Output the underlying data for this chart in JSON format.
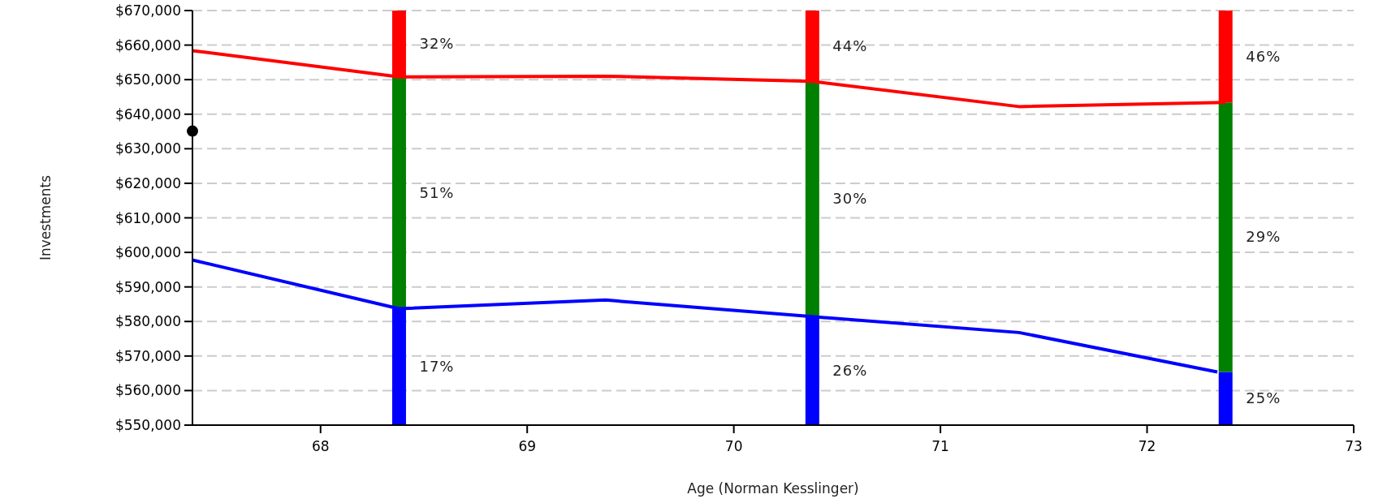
{
  "chart_data": {
    "type": "bar",
    "xlabel": "Age (Norman Kesslinger)",
    "ylabel": "Investments",
    "x": [
      68.38,
      70.38,
      72.38
    ],
    "series": [
      {
        "color": "#0000ff",
        "base": [
          550000,
          550000,
          550000
        ],
        "values": [
          33700,
          31400,
          15400
        ]
      },
      {
        "color": "#008000",
        "base": [
          583700,
          581400,
          565400
        ],
        "values": [
          67100,
          68100,
          78000
        ]
      },
      {
        "color": "#ff0000",
        "base": [
          650800,
          649500,
          643400
        ],
        "values": [
          19200,
          20500,
          26600
        ]
      },
      {
        "type": "line",
        "color": "#ff0000",
        "x": [
          67.38,
          68.38,
          69.38,
          70.38,
          71.38,
          72.38
        ],
        "values": [
          658400,
          650800,
          651000,
          649500,
          642200,
          643400
        ]
      },
      {
        "type": "line",
        "color": "#0000ff",
        "x": [
          67.38,
          68.38,
          69.38,
          70.38,
          71.38,
          72.34
        ],
        "values": [
          597800,
          583700,
          586200,
          581400,
          576800,
          565400
        ]
      },
      {
        "type": "scatter",
        "color": "#000000",
        "marker": "circle",
        "x": [
          67.38
        ],
        "values": [
          635100
        ]
      }
    ],
    "annotations": [
      "17%",
      "51%",
      "32%",
      "26%",
      "30%",
      "44%",
      "25%",
      "29%",
      "46%"
    ],
    "xlim": [
      67.38,
      73
    ],
    "xticks": [
      68,
      69,
      70,
      71,
      72,
      73
    ],
    "ylim": [
      550000,
      670000
    ],
    "yticks": [
      {
        "value": 550000,
        "label": "$550,000"
      },
      {
        "value": 560000,
        "label": "$560,000"
      },
      {
        "value": 570000,
        "label": "$570,000"
      },
      {
        "value": 580000,
        "label": "$580,000"
      },
      {
        "value": 590000,
        "label": "$590,000"
      },
      {
        "value": 600000,
        "label": "$600,000"
      },
      {
        "value": 610000,
        "label": "$610,000"
      },
      {
        "value": 620000,
        "label": "$620,000"
      },
      {
        "value": 630000,
        "label": "$630,000"
      },
      {
        "value": 640000,
        "label": "$640,000"
      },
      {
        "value": 650000,
        "label": "$650,000"
      },
      {
        "value": 660000,
        "label": "$660,000"
      },
      {
        "value": 670000,
        "label": "$670,000"
      }
    ],
    "grid": "y"
  }
}
